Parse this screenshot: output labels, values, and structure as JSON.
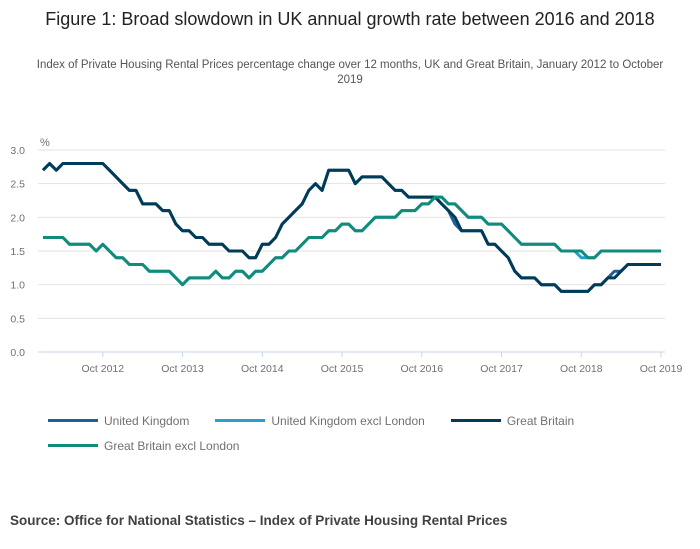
{
  "title": "Figure 1: Broad slowdown in UK annual growth rate between 2016 and 2018",
  "subtitle": "Index of Private Housing Rental Prices percentage change over 12 months, UK and Great Britain, January 2012 to October 2019",
  "source": "Source: Office for National Statistics – Index of Private Housing Rental Prices",
  "chart_data": {
    "type": "line",
    "title": "Figure 1: Broad slowdown in UK annual growth rate between 2016 and 2018",
    "ylabel": "%",
    "xlabel": "",
    "ylim": [
      0,
      3.0
    ],
    "yticks": [
      "0.0",
      "0.5",
      "1.0",
      "1.5",
      "2.0",
      "2.5",
      "3.0"
    ],
    "xtick_labels": [
      "Oct 2012",
      "Oct 2013",
      "Oct 2014",
      "Oct 2015",
      "Oct 2016",
      "Oct 2017",
      "Oct 2018",
      "Oct 2019"
    ],
    "grid": true,
    "legend_position": "bottom",
    "x": [
      "2012-01",
      "2012-02",
      "2012-03",
      "2012-04",
      "2012-05",
      "2012-06",
      "2012-07",
      "2012-08",
      "2012-09",
      "2012-10",
      "2012-11",
      "2012-12",
      "2013-01",
      "2013-02",
      "2013-03",
      "2013-04",
      "2013-05",
      "2013-06",
      "2013-07",
      "2013-08",
      "2013-09",
      "2013-10",
      "2013-11",
      "2013-12",
      "2014-01",
      "2014-02",
      "2014-03",
      "2014-04",
      "2014-05",
      "2014-06",
      "2014-07",
      "2014-08",
      "2014-09",
      "2014-10",
      "2014-11",
      "2014-12",
      "2015-01",
      "2015-02",
      "2015-03",
      "2015-04",
      "2015-05",
      "2015-06",
      "2015-07",
      "2015-08",
      "2015-09",
      "2015-10",
      "2015-11",
      "2015-12",
      "2016-01",
      "2016-02",
      "2016-03",
      "2016-04",
      "2016-05",
      "2016-06",
      "2016-07",
      "2016-08",
      "2016-09",
      "2016-10",
      "2016-11",
      "2016-12",
      "2017-01",
      "2017-02",
      "2017-03",
      "2017-04",
      "2017-05",
      "2017-06",
      "2017-07",
      "2017-08",
      "2017-09",
      "2017-10",
      "2017-11",
      "2017-12",
      "2018-01",
      "2018-02",
      "2018-03",
      "2018-04",
      "2018-05",
      "2018-06",
      "2018-07",
      "2018-08",
      "2018-09",
      "2018-10",
      "2018-11",
      "2018-12",
      "2019-01",
      "2019-02",
      "2019-03",
      "2019-04",
      "2019-05",
      "2019-06",
      "2019-07",
      "2019-08",
      "2019-09",
      "2019-10"
    ],
    "series": [
      {
        "name": "United Kingdom",
        "color": "#206095",
        "values": [
          2.7,
          2.8,
          2.7,
          2.8,
          2.8,
          2.8,
          2.8,
          2.8,
          2.8,
          2.8,
          2.7,
          2.6,
          2.5,
          2.4,
          2.4,
          2.2,
          2.2,
          2.2,
          2.1,
          2.1,
          1.9,
          1.8,
          1.8,
          1.7,
          1.7,
          1.6,
          1.6,
          1.6,
          1.5,
          1.5,
          1.5,
          1.4,
          1.4,
          1.6,
          1.6,
          1.7,
          1.9,
          2.0,
          2.1,
          2.2,
          2.4,
          2.5,
          2.4,
          2.7,
          2.7,
          2.7,
          2.7,
          2.5,
          2.6,
          2.6,
          2.6,
          2.6,
          2.5,
          2.4,
          2.4,
          2.3,
          2.3,
          2.3,
          2.3,
          2.3,
          2.2,
          2.1,
          1.9,
          1.8,
          1.8,
          1.8,
          1.8,
          1.6,
          1.6,
          1.5,
          1.4,
          1.2,
          1.1,
          1.1,
          1.1,
          1.0,
          1.0,
          1.0,
          0.9,
          0.9,
          0.9,
          0.9,
          0.9,
          1.0,
          1.0,
          1.1,
          1.2,
          1.2,
          1.3,
          1.3,
          1.3,
          1.3,
          1.3,
          1.3
        ]
      },
      {
        "name": "United Kingdom excl London",
        "color": "#27a0cc",
        "values": [
          1.7,
          1.7,
          1.7,
          1.7,
          1.6,
          1.6,
          1.6,
          1.6,
          1.5,
          1.6,
          1.5,
          1.4,
          1.4,
          1.3,
          1.3,
          1.3,
          1.2,
          1.2,
          1.2,
          1.2,
          1.1,
          1.0,
          1.1,
          1.1,
          1.1,
          1.1,
          1.2,
          1.1,
          1.1,
          1.2,
          1.2,
          1.1,
          1.2,
          1.2,
          1.3,
          1.4,
          1.4,
          1.5,
          1.5,
          1.6,
          1.7,
          1.7,
          1.7,
          1.8,
          1.8,
          1.9,
          1.9,
          1.8,
          1.8,
          1.9,
          2.0,
          2.0,
          2.0,
          2.0,
          2.1,
          2.1,
          2.1,
          2.2,
          2.2,
          2.3,
          2.3,
          2.2,
          2.2,
          2.1,
          2.0,
          2.0,
          2.0,
          1.9,
          1.9,
          1.9,
          1.8,
          1.7,
          1.6,
          1.6,
          1.6,
          1.6,
          1.6,
          1.6,
          1.5,
          1.5,
          1.5,
          1.4,
          1.4,
          1.4,
          1.5,
          1.5,
          1.5,
          1.5,
          1.5,
          1.5,
          1.5,
          1.5,
          1.5,
          1.5
        ]
      },
      {
        "name": "Great Britain",
        "color": "#003c57",
        "values": [
          2.7,
          2.8,
          2.7,
          2.8,
          2.8,
          2.8,
          2.8,
          2.8,
          2.8,
          2.8,
          2.7,
          2.6,
          2.5,
          2.4,
          2.4,
          2.2,
          2.2,
          2.2,
          2.1,
          2.1,
          1.9,
          1.8,
          1.8,
          1.7,
          1.7,
          1.6,
          1.6,
          1.6,
          1.5,
          1.5,
          1.5,
          1.4,
          1.4,
          1.6,
          1.6,
          1.7,
          1.9,
          2.0,
          2.1,
          2.2,
          2.4,
          2.5,
          2.4,
          2.7,
          2.7,
          2.7,
          2.7,
          2.5,
          2.6,
          2.6,
          2.6,
          2.6,
          2.5,
          2.4,
          2.4,
          2.3,
          2.3,
          2.3,
          2.3,
          2.3,
          2.2,
          2.1,
          2.0,
          1.8,
          1.8,
          1.8,
          1.8,
          1.6,
          1.6,
          1.5,
          1.4,
          1.2,
          1.1,
          1.1,
          1.1,
          1.0,
          1.0,
          1.0,
          0.9,
          0.9,
          0.9,
          0.9,
          0.9,
          1.0,
          1.0,
          1.1,
          1.1,
          1.2,
          1.3,
          1.3,
          1.3,
          1.3,
          1.3,
          1.3
        ]
      },
      {
        "name": "Great Britain excl London",
        "color": "#118c7b",
        "values": [
          1.7,
          1.7,
          1.7,
          1.7,
          1.6,
          1.6,
          1.6,
          1.6,
          1.5,
          1.6,
          1.5,
          1.4,
          1.4,
          1.3,
          1.3,
          1.3,
          1.2,
          1.2,
          1.2,
          1.2,
          1.1,
          1.0,
          1.1,
          1.1,
          1.1,
          1.1,
          1.2,
          1.1,
          1.1,
          1.2,
          1.2,
          1.1,
          1.2,
          1.2,
          1.3,
          1.4,
          1.4,
          1.5,
          1.5,
          1.6,
          1.7,
          1.7,
          1.7,
          1.8,
          1.8,
          1.9,
          1.9,
          1.8,
          1.8,
          1.9,
          2.0,
          2.0,
          2.0,
          2.0,
          2.1,
          2.1,
          2.1,
          2.2,
          2.2,
          2.3,
          2.3,
          2.2,
          2.2,
          2.1,
          2.0,
          2.0,
          2.0,
          1.9,
          1.9,
          1.9,
          1.8,
          1.7,
          1.6,
          1.6,
          1.6,
          1.6,
          1.6,
          1.6,
          1.5,
          1.5,
          1.5,
          1.5,
          1.4,
          1.4,
          1.5,
          1.5,
          1.5,
          1.5,
          1.5,
          1.5,
          1.5,
          1.5,
          1.5,
          1.5
        ]
      }
    ]
  }
}
